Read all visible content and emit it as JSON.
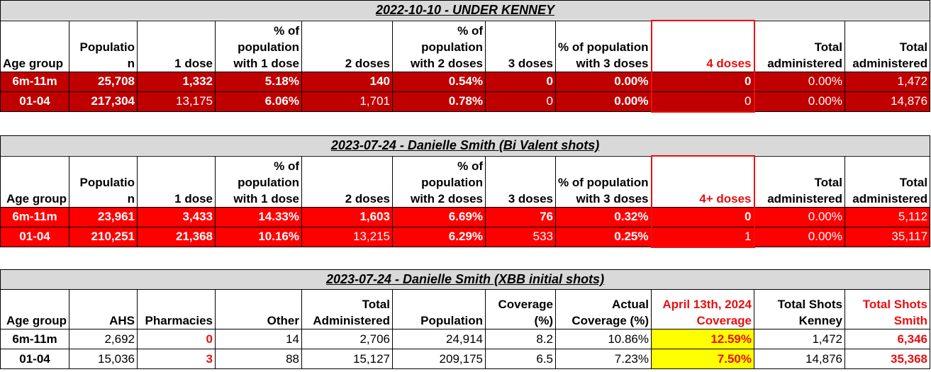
{
  "table1": {
    "title": "2022-10-10 - UNDER KENNEY",
    "headers": [
      "Age group",
      "Populatio n",
      "1 dose",
      "% of population with 1 dose",
      "2 doses",
      "% of population with 2 doses",
      "3 doses",
      "% of population with 3 doses",
      "4 doses",
      "Total administered",
      "Total administered"
    ],
    "rows": [
      [
        "6m-11m",
        "25,708",
        "1,332",
        "5.18%",
        "140",
        "0.54%",
        "0",
        "0.00%",
        "0",
        "0.00%",
        "1,472"
      ],
      [
        "01-04",
        "217,304",
        "13,175",
        "6.06%",
        "1,701",
        "0.78%",
        "0",
        "0.00%",
        "0",
        "0.00%",
        "14,876"
      ]
    ]
  },
  "table2": {
    "title": "2023-07-24 - Danielle Smith (Bi Valent shots)",
    "headers": [
      "Age group",
      "Populatio n",
      "1 dose",
      "% of population with 1 dose",
      "2 doses",
      "% of population with 2 doses",
      "3 doses",
      "% of population with 3 doses",
      "4+ doses",
      "Total administered",
      "Total administered"
    ],
    "rows": [
      [
        "6m-11m",
        "23,961",
        "3,433",
        "14.33%",
        "1,603",
        "6.69%",
        "76",
        "0.32%",
        "0",
        "0.00%",
        "5,112"
      ],
      [
        "01-04",
        "210,251",
        "21,368",
        "10.16%",
        "13,215",
        "6.29%",
        "533",
        "0.25%",
        "1",
        "0.00%",
        "35,117"
      ]
    ]
  },
  "table3": {
    "title": "2023-07-24 - Danielle Smith (XBB initial shots)",
    "headers": [
      "Age group",
      "AHS",
      "Pharmacies",
      "Other",
      "Total Administered",
      "Population",
      "Coverage (%)",
      "Actual Coverage (%)",
      "April 13th, 2024 Coverage",
      "Total Shots Kenney",
      "Total Shots Smith"
    ],
    "rows": [
      [
        "6m-11m",
        "2,692",
        "0",
        "14",
        "2,706",
        "24,914",
        "8.2",
        "10.86%",
        "12.59%",
        "1,472",
        "6,346"
      ],
      [
        "01-04",
        "15,036",
        "3",
        "88",
        "15,127",
        "209,175",
        "6.5",
        "7.23%",
        "7.50%",
        "14,876",
        "35,368"
      ]
    ]
  },
  "colors": {
    "dark_red": "#c00000",
    "red": "#ff0000",
    "yellow": "#ffff00",
    "header_gray": "#d9d9d9"
  }
}
